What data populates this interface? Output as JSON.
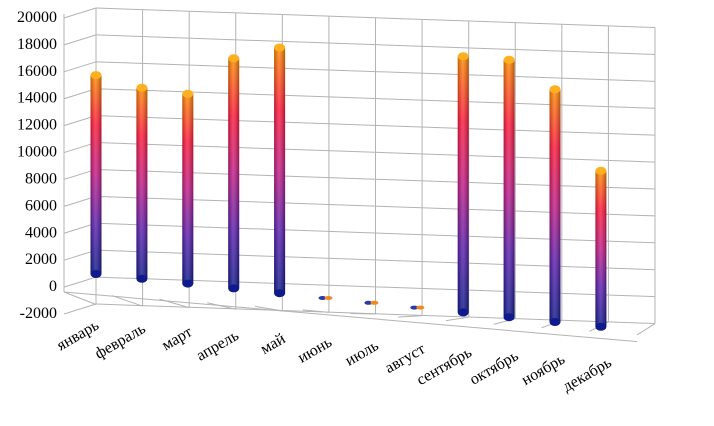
{
  "chart_data": {
    "type": "bar",
    "categories": [
      "январь",
      "февраль",
      "март",
      "апрель",
      "май",
      "июнь",
      "июль",
      "август",
      "сентябрь",
      "октябрь",
      "ноябрь",
      "декабрь"
    ],
    "values": [
      15300,
      14700,
      14600,
      17700,
      18900,
      0,
      0,
      0,
      19700,
      19800,
      17900,
      12000
    ],
    "ylim": [
      -2000,
      20000
    ],
    "yticks": [
      "20000",
      "18000",
      "16000",
      "14000",
      "12000",
      "10000",
      "8000",
      "6000",
      "4000",
      "2000",
      "0",
      "-2000"
    ],
    "grid": true,
    "legend": "none",
    "gradient": {
      "top": "#ff8c00",
      "mid_high": "#ff1a3c",
      "mid": "#c21d86",
      "low": "#5a1fae",
      "bottom": "#101a8c"
    },
    "grid_color": "#b3b3b3"
  }
}
